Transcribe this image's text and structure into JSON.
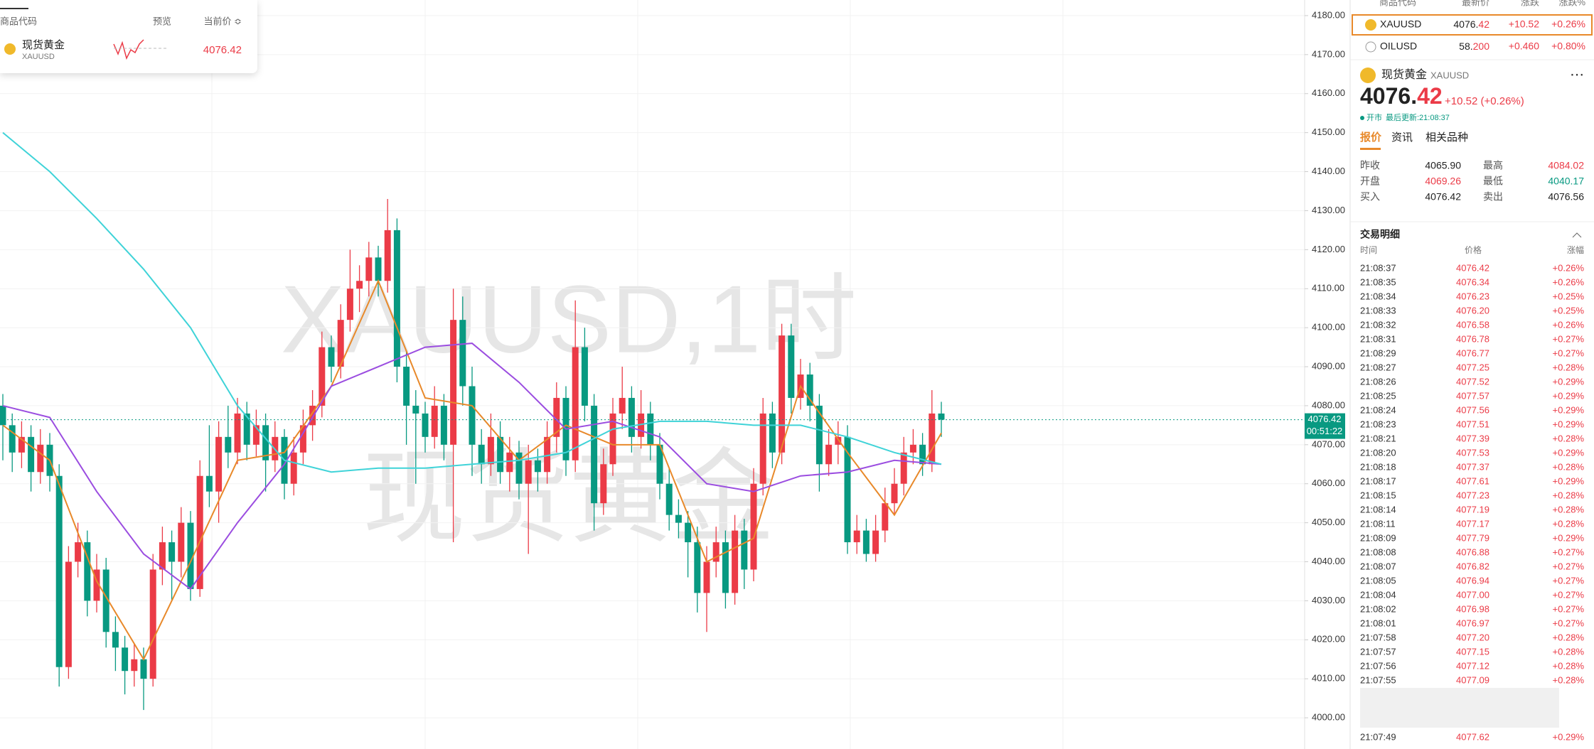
{
  "popup": {
    "headers": [
      "商品代码",
      "预览",
      "当前价 ≎"
    ],
    "name": "现货黄金",
    "code": "XAUUSD",
    "price": "4076.42"
  },
  "chart_data": {
    "type": "candlestick",
    "watermark": [
      "XAUUSD,1时",
      "现货黄金"
    ],
    "ylim": [
      3992,
      4184
    ],
    "yticks": [
      {
        "value": 4000,
        "label": "4000.00"
      },
      {
        "value": 4010,
        "label": "4010.00"
      },
      {
        "value": 4020,
        "label": "4020.00"
      },
      {
        "value": 4030,
        "label": "4030.00"
      },
      {
        "value": 4040,
        "label": "4040.00"
      },
      {
        "value": 4050,
        "label": "4050.00"
      },
      {
        "value": 4060,
        "label": "4060.00"
      },
      {
        "value": 4070,
        "label": "4070.00"
      },
      {
        "value": 4080,
        "label": "4080.00"
      },
      {
        "value": 4090,
        "label": "4090.00"
      },
      {
        "value": 4100,
        "label": "4100.00"
      },
      {
        "value": 4110,
        "label": "4110.00"
      },
      {
        "value": 4120,
        "label": "4120.00"
      },
      {
        "value": 4130,
        "label": "4130.00"
      },
      {
        "value": 4140,
        "label": "4140.00"
      },
      {
        "value": 4150,
        "label": "4150.00"
      },
      {
        "value": 4160,
        "label": "4160.00"
      },
      {
        "value": 4170,
        "label": "4170.00"
      },
      {
        "value": 4180,
        "label": "4180.00"
      }
    ],
    "grid": true,
    "up_color": "#eb3b47",
    "down_color": "#089981",
    "last_price": 4076.42,
    "countdown": "00:51:22",
    "candles": [
      [
        4080,
        4083,
        4066,
        4075
      ],
      [
        4075,
        4078,
        4063,
        4068
      ],
      [
        4068,
        4076,
        4064,
        4072
      ],
      [
        4072,
        4075,
        4058,
        4063
      ],
      [
        4063,
        4074,
        4060,
        4070
      ],
      [
        4070,
        4073,
        4058,
        4062
      ],
      [
        4062,
        4065,
        4008,
        4013
      ],
      [
        4013,
        4044,
        4010,
        4040
      ],
      [
        4040,
        4050,
        4036,
        4045
      ],
      [
        4045,
        4048,
        4026,
        4030
      ],
      [
        4030,
        4042,
        4027,
        4038
      ],
      [
        4038,
        4041,
        4018,
        4022
      ],
      [
        4022,
        4026,
        4012,
        4018
      ],
      [
        4018,
        4021,
        4006,
        4012
      ],
      [
        4012,
        4019,
        4008,
        4015
      ],
      [
        4015,
        4018,
        4002,
        4010
      ],
      [
        4010,
        4042,
        4008,
        4038
      ],
      [
        4038,
        4049,
        4034,
        4045
      ],
      [
        4045,
        4048,
        4030,
        4040
      ],
      [
        4040,
        4054,
        4036,
        4050
      ],
      [
        4050,
        4053,
        4030,
        4033
      ],
      [
        4033,
        4066,
        4031,
        4062
      ],
      [
        4062,
        4075,
        4054,
        4058
      ],
      [
        4058,
        4076,
        4050,
        4072
      ],
      [
        4072,
        4080,
        4064,
        4068
      ],
      [
        4068,
        4082,
        4065,
        4078
      ],
      [
        4078,
        4081,
        4066,
        4070
      ],
      [
        4070,
        4079,
        4067,
        4075
      ],
      [
        4075,
        4078,
        4058,
        4066
      ],
      [
        4066,
        4076,
        4063,
        4072
      ],
      [
        4072,
        4074,
        4056,
        4060
      ],
      [
        4060,
        4072,
        4057,
        4068
      ],
      [
        4068,
        4079,
        4065,
        4075
      ],
      [
        4075,
        4084,
        4071,
        4080
      ],
      [
        4080,
        4099,
        4077,
        4095
      ],
      [
        4095,
        4098,
        4086,
        4090
      ],
      [
        4090,
        4106,
        4087,
        4102
      ],
      [
        4102,
        4120,
        4099,
        4110
      ],
      [
        4110,
        4116,
        4104,
        4112
      ],
      [
        4112,
        4122,
        4108,
        4118
      ],
      [
        4118,
        4121,
        4108,
        4112
      ],
      [
        4112,
        4133,
        4109,
        4125
      ],
      [
        4125,
        4128,
        4086,
        4090
      ],
      [
        4090,
        4094,
        4070,
        4080
      ],
      [
        4080,
        4084,
        4060,
        4078
      ],
      [
        4078,
        4081,
        4068,
        4072
      ],
      [
        4072,
        4085,
        4069,
        4080
      ],
      [
        4080,
        4083,
        4066,
        4070
      ],
      [
        4070,
        4110,
        4045,
        4102
      ],
      [
        4102,
        4108,
        4080,
        4085
      ],
      [
        4085,
        4090,
        4062,
        4070
      ],
      [
        4070,
        4074,
        4060,
        4065
      ],
      [
        4065,
        4078,
        4062,
        4072
      ],
      [
        4072,
        4076,
        4060,
        4063
      ],
      [
        4063,
        4072,
        4058,
        4068
      ],
      [
        4068,
        4071,
        4056,
        4060
      ],
      [
        4060,
        4070,
        4042,
        4066
      ],
      [
        4066,
        4069,
        4058,
        4063
      ],
      [
        4063,
        4076,
        4060,
        4072
      ],
      [
        4072,
        4086,
        4068,
        4082
      ],
      [
        4082,
        4085,
        4062,
        4066
      ],
      [
        4066,
        4107,
        4063,
        4095
      ],
      [
        4095,
        4100,
        4076,
        4080
      ],
      [
        4080,
        4083,
        4048,
        4055
      ],
      [
        4055,
        4069,
        4052,
        4065
      ],
      [
        4065,
        4082,
        4062,
        4078
      ],
      [
        4078,
        4090,
        4074,
        4082
      ],
      [
        4082,
        4085,
        4068,
        4072
      ],
      [
        4072,
        4084,
        4069,
        4078
      ],
      [
        4078,
        4081,
        4066,
        4070
      ],
      [
        4070,
        4073,
        4056,
        4060
      ],
      [
        4060,
        4064,
        4048,
        4052
      ],
      [
        4052,
        4056,
        4046,
        4050
      ],
      [
        4050,
        4053,
        4036,
        4045
      ],
      [
        4045,
        4049,
        4027,
        4032
      ],
      [
        4032,
        4044,
        4022,
        4040
      ],
      [
        4040,
        4049,
        4036,
        4045
      ],
      [
        4045,
        4048,
        4028,
        4032
      ],
      [
        4032,
        4052,
        4029,
        4048
      ],
      [
        4048,
        4051,
        4033,
        4038
      ],
      [
        4038,
        4064,
        4035,
        4060
      ],
      [
        4060,
        4082,
        4057,
        4078
      ],
      [
        4078,
        4081,
        4064,
        4068
      ],
      [
        4068,
        4101,
        4065,
        4098
      ],
      [
        4098,
        4101,
        4078,
        4082
      ],
      [
        4082,
        4092,
        4079,
        4088
      ],
      [
        4088,
        4091,
        4076,
        4080
      ],
      [
        4080,
        4083,
        4058,
        4065
      ],
      [
        4065,
        4074,
        4062,
        4070
      ],
      [
        4070,
        4076,
        4065,
        4072
      ],
      [
        4072,
        4075,
        4042,
        4045
      ],
      [
        4045,
        4052,
        4042,
        4048
      ],
      [
        4048,
        4051,
        4040,
        4042
      ],
      [
        4042,
        4052,
        4040,
        4048
      ],
      [
        4048,
        4059,
        4045,
        4055
      ],
      [
        4055,
        4064,
        4052,
        4060
      ],
      [
        4060,
        4072,
        4057,
        4068
      ],
      [
        4068,
        4074,
        4065,
        4070
      ],
      [
        4070,
        4073,
        4062,
        4065
      ],
      [
        4065,
        4084,
        4063,
        4078
      ],
      [
        4078,
        4081,
        4072,
        4076.42
      ]
    ],
    "series": [
      {
        "color": "#e8892a",
        "x": [
          0,
          5,
          10,
          15,
          20,
          25,
          30,
          35,
          40,
          45,
          50,
          55,
          60,
          65,
          70,
          75,
          80,
          85,
          90,
          95,
          100
        ],
        "values": [
          4075,
          4066,
          4035,
          4015,
          4040,
          4066,
          4068,
          4085,
          4112,
          4082,
          4080,
          4066,
          4075,
          4070,
          4070,
          4040,
          4046,
          4085,
          4068,
          4052,
          4073
        ]
      },
      {
        "color": "#9b4de0",
        "x": [
          0,
          5,
          10,
          15,
          20,
          25,
          30,
          35,
          40,
          45,
          50,
          55,
          60,
          65,
          70,
          75,
          80,
          85,
          90,
          95,
          100
        ],
        "values": [
          4080,
          4077,
          4058,
          4042,
          4033,
          4050,
          4065,
          4085,
          4090,
          4095,
          4096,
          4086,
          4074,
          4076,
          4072,
          4060,
          4058,
          4062,
          4063,
          4066,
          4065
        ]
      },
      {
        "color": "#3fd3d8",
        "x": [
          0,
          5,
          10,
          15,
          20,
          25,
          30,
          35,
          40,
          45,
          50,
          55,
          60,
          65,
          70,
          75,
          80,
          85,
          90,
          95,
          100
        ],
        "values": [
          4150,
          4140,
          4128,
          4115,
          4100,
          4080,
          4066,
          4063,
          4064,
          4064,
          4065,
          4066,
          4068,
          4074,
          4076,
          4076,
          4075,
          4075,
          4072,
          4068,
          4065
        ]
      }
    ]
  },
  "watchlist": {
    "headers": [
      "商品代码",
      "最新价",
      "涨跌",
      "涨跌%"
    ],
    "rows": [
      {
        "code": "XAUUSD",
        "price_int": "4076.",
        "price_dec": "42",
        "change": "+10.52",
        "change_pct": "+0.26%"
      },
      {
        "code": "OILUSD",
        "price_int": "58.",
        "price_dec": "200",
        "change": "+0.460",
        "change_pct": "+0.80%"
      }
    ]
  },
  "quote": {
    "name": "现货黄金",
    "code": "XAUUSD",
    "price_int": "4076.",
    "price_dec": "42",
    "change": "+10.52 (+0.26%)",
    "status": "开市",
    "updated": "最后更新:21:08:37",
    "tabs": [
      "报价",
      "资讯",
      "相关品种"
    ],
    "stats": [
      [
        "昨收",
        "4065.90",
        "最高",
        "4084.02"
      ],
      [
        "开盘",
        "4069.26",
        "最低",
        "4040.17"
      ],
      [
        "买入",
        "4076.42",
        "卖出",
        "4076.56"
      ]
    ]
  },
  "trades": {
    "title": "交易明细",
    "headers": [
      "时间",
      "价格",
      "涨幅"
    ],
    "rows": [
      [
        "21:08:37",
        "4076.42",
        "+0.26%"
      ],
      [
        "21:08:35",
        "4076.34",
        "+0.26%"
      ],
      [
        "21:08:34",
        "4076.23",
        "+0.25%"
      ],
      [
        "21:08:33",
        "4076.20",
        "+0.25%"
      ],
      [
        "21:08:32",
        "4076.58",
        "+0.26%"
      ],
      [
        "21:08:31",
        "4076.78",
        "+0.27%"
      ],
      [
        "21:08:29",
        "4076.77",
        "+0.27%"
      ],
      [
        "21:08:27",
        "4077.25",
        "+0.28%"
      ],
      [
        "21:08:26",
        "4077.52",
        "+0.29%"
      ],
      [
        "21:08:25",
        "4077.57",
        "+0.29%"
      ],
      [
        "21:08:24",
        "4077.56",
        "+0.29%"
      ],
      [
        "21:08:23",
        "4077.51",
        "+0.29%"
      ],
      [
        "21:08:21",
        "4077.39",
        "+0.28%"
      ],
      [
        "21:08:20",
        "4077.53",
        "+0.29%"
      ],
      [
        "21:08:18",
        "4077.37",
        "+0.28%"
      ],
      [
        "21:08:17",
        "4077.61",
        "+0.29%"
      ],
      [
        "21:08:15",
        "4077.23",
        "+0.28%"
      ],
      [
        "21:08:14",
        "4077.19",
        "+0.28%"
      ],
      [
        "21:08:11",
        "4077.17",
        "+0.28%"
      ],
      [
        "21:08:09",
        "4077.79",
        "+0.29%"
      ],
      [
        "21:08:08",
        "4076.88",
        "+0.27%"
      ],
      [
        "21:08:07",
        "4076.82",
        "+0.27%"
      ],
      [
        "21:08:05",
        "4076.94",
        "+0.27%"
      ],
      [
        "21:08:04",
        "4077.00",
        "+0.27%"
      ],
      [
        "21:08:02",
        "4076.98",
        "+0.27%"
      ],
      [
        "21:08:01",
        "4076.97",
        "+0.27%"
      ],
      [
        "21:07:58",
        "4077.20",
        "+0.28%"
      ],
      [
        "21:07:57",
        "4077.15",
        "+0.28%"
      ],
      [
        "21:07:56",
        "4077.12",
        "+0.28%"
      ],
      [
        "21:07:55",
        "4077.09",
        "+0.28%"
      ],
      [
        "21:07:49",
        "4077.62",
        "+0.29%"
      ]
    ]
  }
}
